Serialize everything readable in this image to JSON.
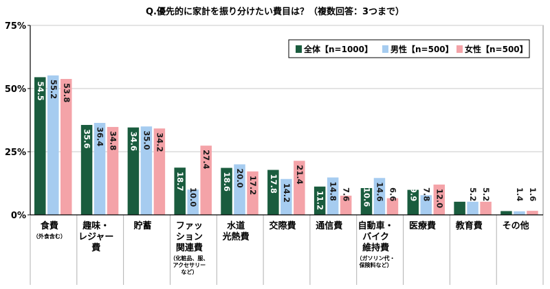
{
  "chart_data": {
    "type": "bar",
    "title": "Q.優先的に家計を振り分けたい費目は？（複数回答：3つまで）",
    "ylim": [
      0,
      75
    ],
    "yticks": [
      0,
      25,
      50,
      75
    ],
    "ytick_labels": [
      "0%",
      "25%",
      "50%",
      "75%"
    ],
    "grid": true,
    "legend_position": "top-right",
    "categories": [
      {
        "lines": [
          "食費"
        ],
        "note": [
          "（外食含む）"
        ]
      },
      {
        "lines": [
          "趣味・",
          "レジャー",
          "費"
        ],
        "note": []
      },
      {
        "lines": [
          "貯蓄"
        ],
        "note": []
      },
      {
        "lines": [
          "ファッ",
          "ション",
          "関連費"
        ],
        "note": [
          "（化粧品、服、",
          "アクセサリー",
          "など）"
        ]
      },
      {
        "lines": [
          "水道",
          "光熱費"
        ],
        "note": []
      },
      {
        "lines": [
          "交際費"
        ],
        "note": []
      },
      {
        "lines": [
          "通信費"
        ],
        "note": []
      },
      {
        "lines": [
          "自動車・",
          "バイク",
          "維持費"
        ],
        "note": [
          "（ガソリン代・",
          "保険料など）"
        ]
      },
      {
        "lines": [
          "医療費"
        ],
        "note": []
      },
      {
        "lines": [
          "教育費"
        ],
        "note": []
      },
      {
        "lines": [
          "その他"
        ],
        "note": []
      }
    ],
    "series": [
      {
        "name": "全体【n=1000】",
        "color": "#1a5c3e",
        "values": [
          54.5,
          35.6,
          34.6,
          18.7,
          18.6,
          17.8,
          11.2,
          10.6,
          9.9,
          5.2,
          1.5
        ]
      },
      {
        "name": "男性【n=500】",
        "color": "#a6ccf0",
        "values": [
          55.2,
          36.4,
          35.0,
          10.0,
          20.0,
          14.2,
          14.8,
          14.6,
          7.8,
          5.2,
          1.4
        ]
      },
      {
        "name": "女性【n=500】",
        "color": "#f4a3a8",
        "values": [
          53.8,
          34.8,
          34.2,
          27.4,
          17.2,
          21.4,
          7.6,
          6.6,
          12.0,
          5.2,
          1.6
        ]
      }
    ]
  }
}
